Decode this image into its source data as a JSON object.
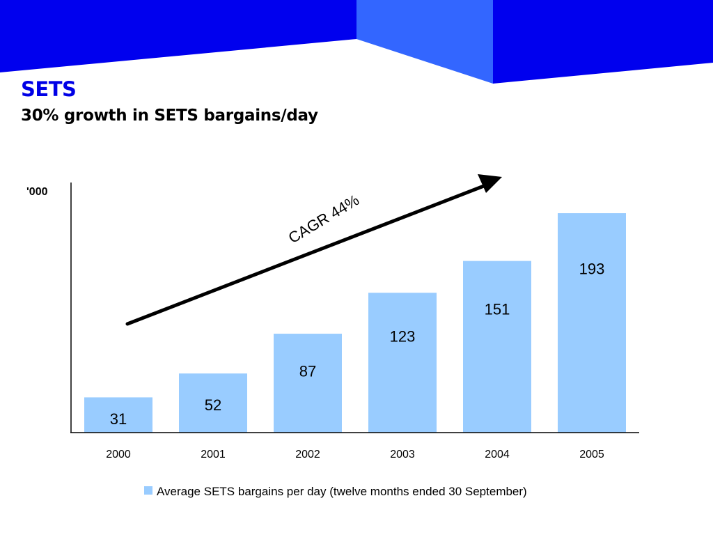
{
  "slide": {
    "title": "SETS",
    "subtitle": "30% growth in SETS bargains/day",
    "colors": {
      "banner_dark": "#0000ee",
      "banner_light": "#3366ff",
      "title": "#0000e6",
      "bar": "#99ccff",
      "arrow": "#000000"
    }
  },
  "chart_data": {
    "type": "bar",
    "categories": [
      "2000",
      "2001",
      "2002",
      "2003",
      "2004",
      "2005"
    ],
    "series": [
      {
        "name": "Average SETS bargains per day (twelve months ended 30 September)",
        "values": [
          31,
          52,
          87,
          123,
          151,
          193
        ]
      }
    ],
    "data_labels": [
      "31",
      "52",
      "87",
      "123",
      "151",
      "193"
    ],
    "ylabel": "'000",
    "ylim": [
      0,
      220
    ],
    "y_ticks_shown": false,
    "grid": false,
    "legend": "bottom",
    "annotation": {
      "text": "CAGR 44%",
      "type": "upward-arrow"
    }
  }
}
